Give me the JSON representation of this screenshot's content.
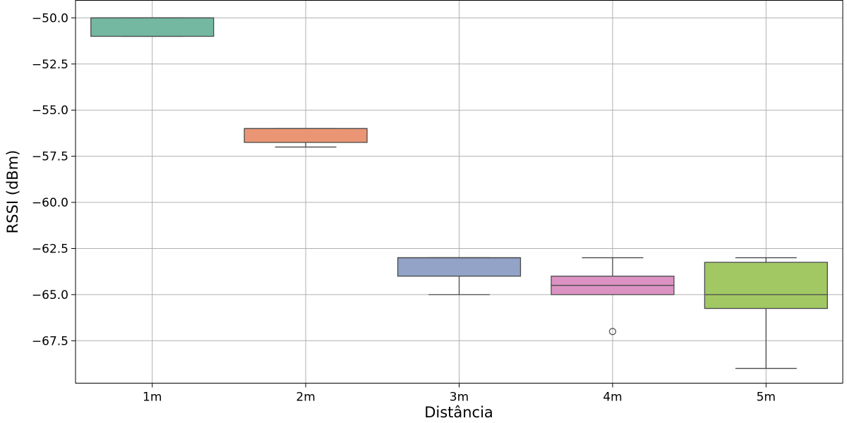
{
  "chart_data": {
    "type": "box",
    "xlabel": "Distância",
    "ylabel": "RSSI (dBm)",
    "ylim": [
      -69.8,
      -49.05
    ],
    "yticks": [
      -50.0,
      -52.5,
      -55.0,
      -57.5,
      -60.0,
      -62.5,
      -65.0,
      -67.5
    ],
    "ytick_labels": [
      "−50.0",
      "−52.5",
      "−55.0",
      "−57.5",
      "−60.0",
      "−62.5",
      "−65.0",
      "−67.5"
    ],
    "grid": true,
    "categories": [
      "1m",
      "2m",
      "3m",
      "4m",
      "5m"
    ],
    "boxes": [
      {
        "category": "1m",
        "whislo": -51.0,
        "q1": -51.0,
        "median": -50.0,
        "q3": -50.0,
        "whishi": -50.0,
        "outliers": [],
        "color": "#74b8a1"
      },
      {
        "category": "2m",
        "whislo": -57.0,
        "q1": -56.75,
        "median": -56.0,
        "q3": -56.0,
        "whishi": -56.0,
        "outliers": [],
        "color": "#ea9674"
      },
      {
        "category": "3m",
        "whislo": -65.0,
        "q1": -64.0,
        "median": -63.0,
        "q3": -63.0,
        "whishi": -63.0,
        "outliers": [],
        "color": "#93a3c7"
      },
      {
        "category": "4m",
        "whislo": -65.0,
        "q1": -65.0,
        "median": -64.5,
        "q3": -64.0,
        "whishi": -63.0,
        "outliers": [
          -67.0
        ],
        "color": "#dc93c3"
      },
      {
        "category": "5m",
        "whislo": -69.0,
        "q1": -65.75,
        "median": -65.0,
        "q3": -63.25,
        "whishi": -63.0,
        "outliers": [],
        "color": "#a2c864"
      }
    ]
  }
}
